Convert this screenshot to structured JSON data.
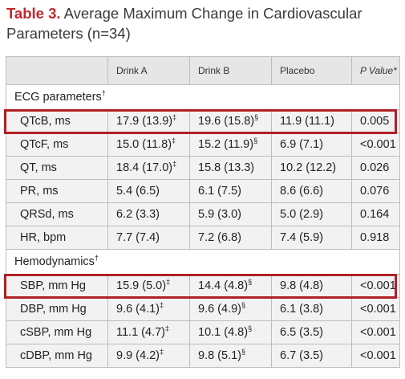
{
  "caption": {
    "table_number": "Table 3.",
    "title": "Average Maximum Change in Cardiovascular Parameters (n=34)"
  },
  "headers": [
    "",
    "Drink A",
    "Drink B",
    "Placebo",
    "P Value*"
  ],
  "sections": [
    {
      "label": "ECG parameters",
      "mark": "†",
      "rows": [
        {
          "label": "QTcB, ms",
          "a": "17.9 (13.9)",
          "a_mark": "‡",
          "b": "19.6 (15.8)",
          "b_mark": "§",
          "placebo": "11.9 (11.1)",
          "p": "0.005"
        },
        {
          "label": "QTcF, ms",
          "a": "15.0 (11.8)",
          "a_mark": "‡",
          "b": "15.2 (11.9)",
          "b_mark": "§",
          "placebo": "6.9 (7.1)",
          "p": "<0.001"
        },
        {
          "label": "QT, ms",
          "a": "18.4 (17.0)",
          "a_mark": "‡",
          "b": "15.8 (13.3)",
          "b_mark": "",
          "placebo": "10.2 (12.2)",
          "p": "0.026"
        },
        {
          "label": "PR, ms",
          "a": "5.4 (6.5)",
          "a_mark": "",
          "b": "6.1 (7.5)",
          "b_mark": "",
          "placebo": "8.6 (6.6)",
          "p": "0.076"
        },
        {
          "label": "QRSd, ms",
          "a": "6.2 (3.3)",
          "a_mark": "",
          "b": "5.9 (3.0)",
          "b_mark": "",
          "placebo": "5.0 (2.9)",
          "p": "0.164"
        },
        {
          "label": "HR, bpm",
          "a": "7.7 (7.4)",
          "a_mark": "",
          "b": "7.2 (6.8)",
          "b_mark": "",
          "placebo": "7.4 (5.9)",
          "p": "0.918"
        }
      ]
    },
    {
      "label": "Hemodynamics",
      "mark": "†",
      "rows": [
        {
          "label": "SBP, mm Hg",
          "a": "15.9 (5.0)",
          "a_mark": "‡",
          "b": "14.4 (4.8)",
          "b_mark": "§",
          "placebo": "9.8 (4.8)",
          "p": "<0.001"
        },
        {
          "label": "DBP, mm Hg",
          "a": "9.6 (4.1)",
          "a_mark": "‡",
          "b": "9.6 (4.9)",
          "b_mark": "§",
          "placebo": "6.1 (3.8)",
          "p": "<0.001"
        },
        {
          "label": "cSBP, mm Hg",
          "a": "11.1 (4.7)",
          "a_mark": "‡",
          "b": "10.1 (4.8)",
          "b_mark": "§",
          "placebo": "6.5 (3.5)",
          "p": "<0.001"
        },
        {
          "label": "cDBP, mm Hg",
          "a": "9.9 (4.2)",
          "a_mark": "‡",
          "b": "9.8 (5.1)",
          "b_mark": "§",
          "placebo": "6.7 (3.5)",
          "p": "<0.001"
        }
      ]
    }
  ],
  "highlighted_rows": [
    "QTcB, ms",
    "SBP, mm Hg"
  ],
  "colors": {
    "accent": "#c0282d",
    "highlight_border": "#b02025",
    "header_bg": "#e6e6e6",
    "row_bg": "#f2f2f2"
  }
}
